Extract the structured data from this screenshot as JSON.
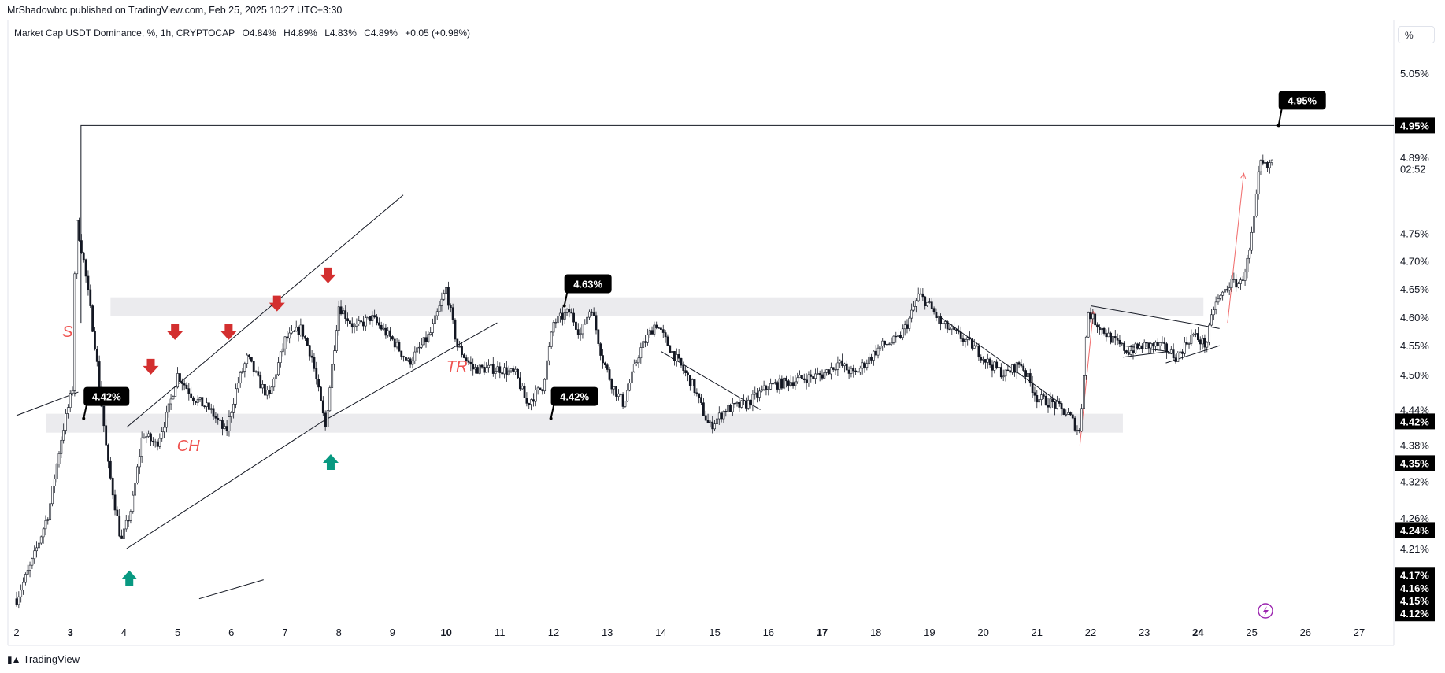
{
  "header": {
    "publisher": "MrShadowbtc published on TradingView.com, Feb 25, 2025 10:27 UTC+3:30",
    "symbol": "Market Cap USDT Dominance, %, 1h, CRYPTOCAP",
    "open": "O4.84%",
    "high": "H4.89%",
    "low": "L4.83%",
    "close": "C4.89%",
    "change": "+0.05 (+0.98%)",
    "scale_button": "%"
  },
  "footer": {
    "brand": "TradingView"
  },
  "colors": {
    "candle": "#131722",
    "zone": "#ebebee",
    "down_arrow": "#d32f2f",
    "up_arrow": "#089981",
    "projection": "#f06a6a",
    "callout_bg": "#000000"
  },
  "chart_data": {
    "type": "candlestick",
    "y_scale": "log",
    "ylim": [
      4.12,
      5.07
    ],
    "y_ticks": [
      "5.05%",
      "4.89%",
      "4.75%",
      "4.70%",
      "4.65%",
      "4.60%",
      "4.55%",
      "4.50%",
      "4.44%",
      "4.38%",
      "4.32%",
      "4.26%",
      "4.21%"
    ],
    "x_labels": [
      {
        "label": "2",
        "day": 2,
        "bold": false
      },
      {
        "label": "3",
        "day": 3,
        "bold": true
      },
      {
        "label": "4",
        "day": 4,
        "bold": false
      },
      {
        "label": "5",
        "day": 5,
        "bold": false
      },
      {
        "label": "6",
        "day": 6,
        "bold": false
      },
      {
        "label": "7",
        "day": 7,
        "bold": false
      },
      {
        "label": "8",
        "day": 8,
        "bold": false
      },
      {
        "label": "9",
        "day": 9,
        "bold": false
      },
      {
        "label": "10",
        "day": 10,
        "bold": true
      },
      {
        "label": "11",
        "day": 11,
        "bold": false
      },
      {
        "label": "12",
        "day": 12,
        "bold": false
      },
      {
        "label": "13",
        "day": 13,
        "bold": false
      },
      {
        "label": "14",
        "day": 14,
        "bold": false
      },
      {
        "label": "15",
        "day": 15,
        "bold": false
      },
      {
        "label": "16",
        "day": 16,
        "bold": false
      },
      {
        "label": "17",
        "day": 17,
        "bold": true
      },
      {
        "label": "18",
        "day": 18,
        "bold": false
      },
      {
        "label": "19",
        "day": 19,
        "bold": false
      },
      {
        "label": "20",
        "day": 20,
        "bold": false
      },
      {
        "label": "21",
        "day": 21,
        "bold": false
      },
      {
        "label": "22",
        "day": 22,
        "bold": false
      },
      {
        "label": "23",
        "day": 23,
        "bold": false
      },
      {
        "label": "24",
        "day": 24,
        "bold": true
      },
      {
        "label": "25",
        "day": 25,
        "bold": false
      },
      {
        "label": "26",
        "day": 26,
        "bold": false
      },
      {
        "label": "27",
        "day": 27,
        "bold": false
      }
    ],
    "price_path": [
      [
        2.0,
        4.13
      ],
      [
        2.3,
        4.19
      ],
      [
        2.6,
        4.27
      ],
      [
        2.85,
        4.4
      ],
      [
        3.05,
        4.48
      ],
      [
        3.1,
        4.78
      ],
      [
        3.25,
        4.7
      ],
      [
        3.45,
        4.56
      ],
      [
        3.7,
        4.35
      ],
      [
        3.95,
        4.22
      ],
      [
        4.15,
        4.28
      ],
      [
        4.35,
        4.4
      ],
      [
        4.6,
        4.38
      ],
      [
        4.8,
        4.43
      ],
      [
        5.0,
        4.5
      ],
      [
        5.3,
        4.46
      ],
      [
        5.6,
        4.44
      ],
      [
        5.9,
        4.4
      ],
      [
        6.1,
        4.48
      ],
      [
        6.3,
        4.53
      ],
      [
        6.5,
        4.49
      ],
      [
        6.7,
        4.46
      ],
      [
        7.0,
        4.56
      ],
      [
        7.3,
        4.58
      ],
      [
        7.5,
        4.53
      ],
      [
        7.75,
        4.41
      ],
      [
        8.0,
        4.62
      ],
      [
        8.3,
        4.58
      ],
      [
        8.6,
        4.6
      ],
      [
        9.0,
        4.56
      ],
      [
        9.3,
        4.52
      ],
      [
        9.7,
        4.57
      ],
      [
        10.0,
        4.65
      ],
      [
        10.2,
        4.55
      ],
      [
        10.5,
        4.51
      ],
      [
        11.0,
        4.51
      ],
      [
        11.3,
        4.5
      ],
      [
        11.5,
        4.45
      ],
      [
        11.8,
        4.48
      ],
      [
        12.0,
        4.59
      ],
      [
        12.3,
        4.61
      ],
      [
        12.5,
        4.57
      ],
      [
        12.7,
        4.62
      ],
      [
        12.9,
        4.53
      ],
      [
        13.1,
        4.48
      ],
      [
        13.3,
        4.45
      ],
      [
        13.6,
        4.54
      ],
      [
        13.9,
        4.59
      ],
      [
        14.2,
        4.54
      ],
      [
        14.6,
        4.48
      ],
      [
        14.9,
        4.41
      ],
      [
        15.2,
        4.44
      ],
      [
        15.6,
        4.45
      ],
      [
        16.0,
        4.48
      ],
      [
        16.5,
        4.49
      ],
      [
        17.0,
        4.5
      ],
      [
        17.3,
        4.52
      ],
      [
        17.6,
        4.5
      ],
      [
        17.9,
        4.53
      ],
      [
        18.1,
        4.55
      ],
      [
        18.4,
        4.56
      ],
      [
        18.6,
        4.59
      ],
      [
        18.8,
        4.64
      ],
      [
        19.0,
        4.62
      ],
      [
        19.2,
        4.59
      ],
      [
        19.5,
        4.57
      ],
      [
        19.8,
        4.55
      ],
      [
        20.1,
        4.52
      ],
      [
        20.4,
        4.5
      ],
      [
        20.7,
        4.52
      ],
      [
        21.0,
        4.46
      ],
      [
        21.3,
        4.45
      ],
      [
        21.6,
        4.43
      ],
      [
        21.8,
        4.4
      ],
      [
        21.95,
        4.61
      ],
      [
        22.1,
        4.59
      ],
      [
        22.4,
        4.56
      ],
      [
        22.7,
        4.54
      ],
      [
        23.0,
        4.55
      ],
      [
        23.3,
        4.55
      ],
      [
        23.6,
        4.53
      ],
      [
        23.9,
        4.57
      ],
      [
        24.15,
        4.55
      ],
      [
        24.3,
        4.62
      ],
      [
        24.6,
        4.66
      ],
      [
        24.8,
        4.66
      ],
      [
        24.95,
        4.71
      ],
      [
        25.05,
        4.78
      ],
      [
        25.15,
        4.88
      ],
      [
        25.3,
        4.87
      ],
      [
        25.4,
        4.89
      ]
    ],
    "annotations": {
      "level_line": {
        "label": "4.95%",
        "price": 4.95
      },
      "callouts": [
        {
          "label": "4.95%"
        },
        {
          "label": "4.63%"
        },
        {
          "label": "4.42%",
          "id": "left"
        },
        {
          "label": "4.42%",
          "id": "mid"
        }
      ],
      "zones": [
        {
          "from": 4.602,
          "to": 4.635,
          "name": "resistance"
        },
        {
          "from": 4.401,
          "to": 4.433,
          "name": "support"
        }
      ],
      "labels": [
        "S",
        "CH",
        "TR"
      ],
      "price_badges": [
        "4.95%",
        "4.42%",
        "4.35%",
        "4.24%",
        "4.17%",
        "4.16%",
        "4.15%",
        "4.12%"
      ],
      "current_price": {
        "label": "4.89%",
        "countdown": "02:52"
      }
    }
  }
}
